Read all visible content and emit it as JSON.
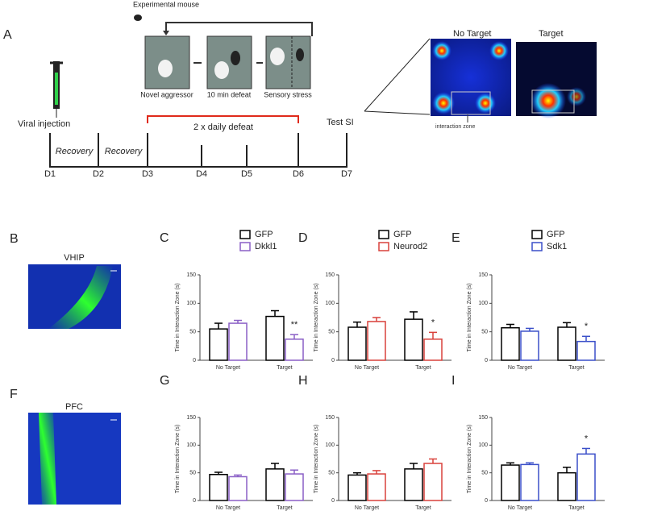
{
  "diagram": {
    "panel": "A",
    "experimental_mouse": "Experimental mouse",
    "steps": [
      "Novel aggressor",
      "10 min defeat",
      "Sensory stress"
    ],
    "defeat": "2 x daily  defeat",
    "viral_injection": "Viral injection",
    "recovery": [
      "Recovery",
      "Recovery"
    ],
    "test": "Test SI",
    "days": [
      "D1",
      "D2",
      "D3",
      "D4",
      "D5",
      "D6",
      "D7"
    ],
    "heatmaps": [
      "No Target",
      "Target"
    ],
    "zone": "interaction zone"
  },
  "images": [
    {
      "panel": "B",
      "region": "VHIP"
    },
    {
      "panel": "F",
      "region": "PFC"
    }
  ],
  "chart_data": [
    {
      "type": "bar",
      "panel": "C",
      "y_label": "Time in Interaction Zone (s)",
      "categories": [
        "No Target",
        "Target"
      ],
      "ylim": [
        0,
        150
      ],
      "yticks": [
        0,
        50,
        100,
        150
      ],
      "series": [
        {
          "name": "GFP",
          "color": "#000000",
          "values": [
            55,
            77
          ],
          "errors": [
            10,
            10
          ]
        },
        {
          "name": "Dkkl1",
          "color": "#8a5fc6",
          "values": [
            65,
            37
          ],
          "errors": [
            5,
            8
          ]
        }
      ],
      "annotations": [
        {
          "text": "**",
          "category": "Target"
        }
      ]
    },
    {
      "type": "bar",
      "panel": "D",
      "y_label": "Time in Interaction Zone (s)",
      "categories": [
        "No Target",
        "Target"
      ],
      "ylim": [
        0,
        150
      ],
      "yticks": [
        0,
        50,
        100,
        150
      ],
      "series": [
        {
          "name": "GFP",
          "color": "#000000",
          "values": [
            58,
            72
          ],
          "errors": [
            9,
            13
          ]
        },
        {
          "name": "Neurod2",
          "color": "#d9413b",
          "values": [
            68,
            37
          ],
          "errors": [
            7,
            12
          ]
        }
      ],
      "annotations": [
        {
          "text": "*",
          "category": "Target"
        }
      ]
    },
    {
      "type": "bar",
      "panel": "E",
      "y_label": "Time in Interaction Zone (s)",
      "categories": [
        "No Target",
        "Target"
      ],
      "ylim": [
        0,
        150
      ],
      "yticks": [
        0,
        50,
        100,
        150
      ],
      "series": [
        {
          "name": "GFP",
          "color": "#000000",
          "values": [
            57,
            58
          ],
          "errors": [
            6,
            8
          ]
        },
        {
          "name": "Sdk1",
          "color": "#3a4fc9",
          "values": [
            51,
            33
          ],
          "errors": [
            5,
            9
          ]
        }
      ],
      "annotations": [
        {
          "text": "*",
          "category": "Target"
        }
      ]
    },
    {
      "type": "bar",
      "panel": "G",
      "y_label": "Time in Interaction Zone (s)",
      "categories": [
        "No Target",
        "Target"
      ],
      "ylim": [
        0,
        150
      ],
      "yticks": [
        0,
        50,
        100,
        150
      ],
      "series": [
        {
          "color": "#000000",
          "values": [
            47,
            57
          ],
          "errors": [
            4,
            10
          ]
        },
        {
          "color": "#8a5fc6",
          "values": [
            43,
            48
          ],
          "errors": [
            3,
            7
          ]
        }
      ]
    },
    {
      "type": "bar",
      "panel": "H",
      "y_label": "Time in Interaction Zone (s)",
      "categories": [
        "No Target",
        "Target"
      ],
      "ylim": [
        0,
        150
      ],
      "yticks": [
        0,
        50,
        100,
        150
      ],
      "series": [
        {
          "color": "#000000",
          "values": [
            46,
            57
          ],
          "errors": [
            4,
            10
          ]
        },
        {
          "color": "#d9413b",
          "values": [
            48,
            67
          ],
          "errors": [
            6,
            8
          ]
        }
      ]
    },
    {
      "type": "bar",
      "panel": "I",
      "y_label": "Time in Interaction Zone (s)",
      "categories": [
        "No Target",
        "Target"
      ],
      "ylim": [
        0,
        150
      ],
      "yticks": [
        0,
        50,
        100,
        150
      ],
      "series": [
        {
          "color": "#000000",
          "values": [
            64,
            50
          ],
          "errors": [
            4,
            10
          ]
        },
        {
          "color": "#3a4fc9",
          "values": [
            65,
            84
          ],
          "errors": [
            3,
            10
          ]
        }
      ],
      "annotations": [
        {
          "text": "*",
          "category": "Target"
        }
      ]
    }
  ]
}
